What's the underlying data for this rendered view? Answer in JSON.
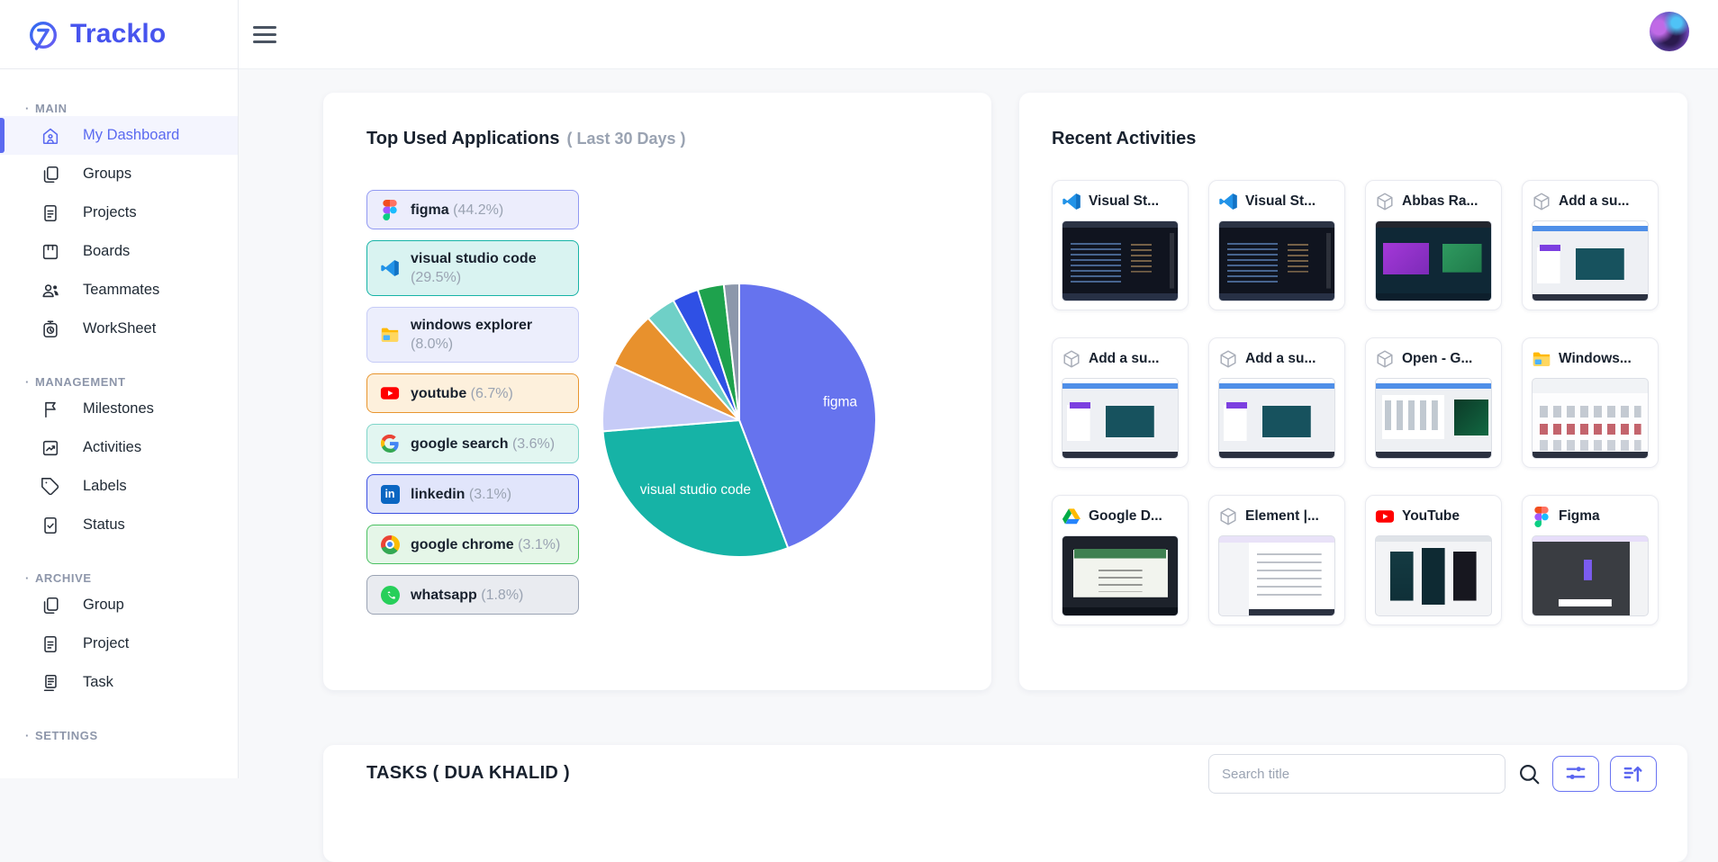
{
  "brand": {
    "name": "Tracklo"
  },
  "header": {
    "avatar": "user-avatar"
  },
  "sidebar": {
    "sections": [
      {
        "label": "MAIN",
        "items": [
          {
            "label": "My Dashboard",
            "icon": "dashboard",
            "active": true
          },
          {
            "label": "Groups",
            "icon": "copy",
            "active": false
          },
          {
            "label": "Projects",
            "icon": "document",
            "active": false
          },
          {
            "label": "Boards",
            "icon": "board",
            "active": false
          },
          {
            "label": "Teammates",
            "icon": "people",
            "active": false
          },
          {
            "label": "WorkSheet",
            "icon": "timer",
            "active": false
          }
        ]
      },
      {
        "label": "MANAGEMENT",
        "items": [
          {
            "label": "Milestones",
            "icon": "flag",
            "active": false
          },
          {
            "label": "Activities",
            "icon": "chart",
            "active": false
          },
          {
            "label": "Labels",
            "icon": "tag",
            "active": false
          },
          {
            "label": "Status",
            "icon": "doc-check",
            "active": false
          }
        ]
      },
      {
        "label": "ARCHIVE",
        "items": [
          {
            "label": "Group",
            "icon": "copy",
            "active": false
          },
          {
            "label": "Project",
            "icon": "document",
            "active": false
          },
          {
            "label": "Task",
            "icon": "task",
            "active": false
          }
        ]
      },
      {
        "label": "SETTINGS",
        "items": []
      }
    ]
  },
  "top_apps": {
    "title": "Top Used Applications",
    "subtitle": "( Last 30 Days )",
    "apps": [
      {
        "name": "figma",
        "pct_label": "(44.2%)",
        "value": 44.2,
        "icon": "figma",
        "chip_bg": "#ecedfc",
        "chip_border": "#9199f2",
        "slice_color": "#6673ee"
      },
      {
        "name": "visual studio code",
        "pct_label": "(29.5%)",
        "value": 29.5,
        "icon": "vscode",
        "chip_bg": "#d9f3f1",
        "chip_border": "#16b3a6",
        "slice_color": "#16b3a6"
      },
      {
        "name": "windows explorer",
        "pct_label": "(8.0%)",
        "value": 8.0,
        "icon": "folder",
        "chip_bg": "#eceefc",
        "chip_border": "#c6cbf7",
        "slice_color": "#c6cbf7"
      },
      {
        "name": "youtube",
        "pct_label": "(6.7%)",
        "value": 6.7,
        "icon": "youtube",
        "chip_bg": "#fdf0dc",
        "chip_border": "#e8952e",
        "slice_color": "#e8912d"
      },
      {
        "name": "google search",
        "pct_label": "(3.6%)",
        "value": 3.6,
        "icon": "google",
        "chip_bg": "#e2f6f1",
        "chip_border": "#7ed5c9",
        "slice_color": "#6fd0c7"
      },
      {
        "name": "linkedin",
        "pct_label": "(3.1%)",
        "value": 3.1,
        "icon": "linkedin",
        "chip_bg": "#e1e5fb",
        "chip_border": "#3c50e2",
        "slice_color": "#2f50e5"
      },
      {
        "name": "google chrome",
        "pct_label": "(3.1%)",
        "value": 3.1,
        "icon": "chrome",
        "chip_bg": "#e5f6e8",
        "chip_border": "#49c061",
        "slice_color": "#1ea24d"
      },
      {
        "name": "whatsapp",
        "pct_label": "(1.8%)",
        "value": 1.8,
        "icon": "whatsapp",
        "chip_bg": "#e9ebf0",
        "chip_border": "#9aa3b4",
        "slice_color": "#8c97ab"
      }
    ]
  },
  "chart_data": {
    "type": "pie",
    "title": "Top Used Applications ( Last 30 Days )",
    "categories": [
      "figma",
      "visual studio code",
      "windows explorer",
      "youtube",
      "google search",
      "linkedin",
      "google chrome",
      "whatsapp"
    ],
    "values": [
      44.2,
      29.5,
      8.0,
      6.7,
      3.6,
      3.1,
      3.1,
      1.8
    ],
    "colors": [
      "#6673ee",
      "#16b3a6",
      "#c6cbf7",
      "#e8912d",
      "#6fd0c7",
      "#2f50e5",
      "#1ea24d",
      "#8c97ab"
    ],
    "start_angle_deg": 0,
    "direction": "clockwise",
    "slice_labels_shown": [
      "figma",
      "visual studio code"
    ],
    "legend_position": "left"
  },
  "recent_activities": {
    "title": "Recent Activities",
    "cards": [
      {
        "title": "Visual St...",
        "icon": "vscode",
        "thumb": "code-dark"
      },
      {
        "title": "Visual St...",
        "icon": "vscode",
        "thumb": "code-dark"
      },
      {
        "title": "Abbas Ra...",
        "icon": "cube",
        "thumb": "pres-dark"
      },
      {
        "title": "Add a su...",
        "icon": "cube",
        "thumb": "web-light"
      },
      {
        "title": "Add a su...",
        "icon": "cube",
        "thumb": "web-light"
      },
      {
        "title": "Add a su...",
        "icon": "cube",
        "thumb": "web-light"
      },
      {
        "title": "Open - G...",
        "icon": "cube",
        "thumb": "dialog"
      },
      {
        "title": "Windows...",
        "icon": "folder",
        "thumb": "grid"
      },
      {
        "title": "Google D...",
        "icon": "gdrive",
        "thumb": "slides"
      },
      {
        "title": "Element |...",
        "icon": "cube",
        "thumb": "chat"
      },
      {
        "title": "YouTube",
        "icon": "youtube",
        "thumb": "phones"
      },
      {
        "title": "Figma",
        "icon": "figma",
        "thumb": "figma-dark"
      }
    ]
  },
  "tasks": {
    "title": "TASKS ( DUA KHALID )",
    "search_placeholder": "Search title"
  }
}
